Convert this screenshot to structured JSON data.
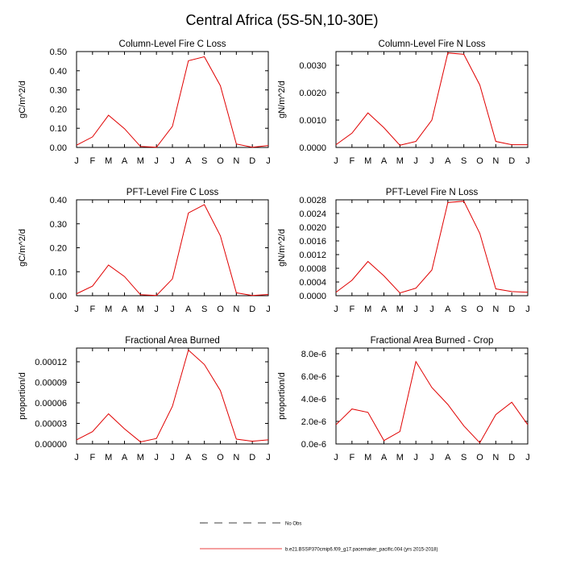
{
  "figure_title": "Central Africa (5S-5N,10-30E)",
  "legend": {
    "obs_label": "No Obs",
    "model_label": "b.e21.BSSP370cmip6.f09_g17.pacemaker_pacific.004 (yrs 2015-2018)",
    "model_color": "#e00000"
  },
  "chart_data": [
    {
      "type": "line",
      "title": "Column-Level Fire C Loss",
      "ylabel": "gC/m^2/d",
      "categories": [
        "J",
        "F",
        "M",
        "A",
        "M",
        "J",
        "J",
        "A",
        "S",
        "O",
        "N",
        "D",
        "J"
      ],
      "ylim": [
        0,
        0.5
      ],
      "yticks": [
        0,
        0.1,
        0.2,
        0.3,
        0.4,
        0.5
      ],
      "yticklabels": [
        "0.00",
        "0.10",
        "0.20",
        "0.30",
        "0.40",
        "0.50"
      ],
      "series": [
        {
          "name": "b.e21.BSSP370cmip6.f09_g17.pacemaker_pacific.004 (yrs 2015-2018)",
          "values": [
            0.012,
            0.055,
            0.168,
            0.098,
            0.005,
            0.001,
            0.11,
            0.452,
            0.473,
            0.322,
            0.018,
            0.001,
            0.01
          ]
        }
      ]
    },
    {
      "type": "line",
      "title": "Column-Level Fire N Loss",
      "ylabel": "gN/m^2/d",
      "categories": [
        "J",
        "F",
        "M",
        "A",
        "M",
        "J",
        "J",
        "A",
        "S",
        "O",
        "N",
        "D",
        "J"
      ],
      "ylim": [
        0,
        0.0035
      ],
      "yticks": [
        0,
        0.001,
        0.002,
        0.003
      ],
      "yticklabels": [
        "0.0000",
        "0.0010",
        "0.0020",
        "0.0030"
      ],
      "series": [
        {
          "name": "b.e21.BSSP370cmip6.f09_g17.pacemaker_pacific.004 (yrs 2015-2018)",
          "values": [
            0.0001,
            0.00052,
            0.00126,
            0.00072,
            8e-05,
            0.00022,
            0.001,
            0.00345,
            0.0034,
            0.00228,
            0.00022,
            0.0001,
            0.0001
          ]
        }
      ]
    },
    {
      "type": "line",
      "title": "PFT-Level Fire C Loss",
      "ylabel": "gC/m^2/d",
      "categories": [
        "J",
        "F",
        "M",
        "A",
        "M",
        "J",
        "J",
        "A",
        "S",
        "O",
        "N",
        "D",
        "J"
      ],
      "ylim": [
        0,
        0.4
      ],
      "yticks": [
        0,
        0.1,
        0.2,
        0.3,
        0.4
      ],
      "yticklabels": [
        "0.00",
        "0.10",
        "0.20",
        "0.30",
        "0.40"
      ],
      "series": [
        {
          "name": "b.e21.BSSP370cmip6.f09_g17.pacemaker_pacific.004 (yrs 2015-2018)",
          "values": [
            0.008,
            0.04,
            0.128,
            0.08,
            0.004,
            0.001,
            0.07,
            0.345,
            0.38,
            0.25,
            0.012,
            0.001,
            0.005
          ]
        }
      ]
    },
    {
      "type": "line",
      "title": "PFT-Level Fire N Loss",
      "ylabel": "gN/m^2/d",
      "categories": [
        "J",
        "F",
        "M",
        "A",
        "M",
        "J",
        "J",
        "A",
        "S",
        "O",
        "N",
        "D",
        "J"
      ],
      "ylim": [
        0,
        0.0028
      ],
      "yticks": [
        0,
        0.0004,
        0.0008,
        0.0012,
        0.0016,
        0.002,
        0.0024,
        0.0028
      ],
      "yticklabels": [
        "0.0000",
        "0.0004",
        "0.0008",
        "0.0012",
        "0.0016",
        "0.0020",
        "0.0024",
        "0.0028"
      ],
      "series": [
        {
          "name": "b.e21.BSSP370cmip6.f09_g17.pacemaker_pacific.004 (yrs 2015-2018)",
          "values": [
            0.0001,
            0.00045,
            0.001,
            0.00058,
            8e-05,
            0.00022,
            0.00075,
            0.00272,
            0.00276,
            0.00182,
            0.0002,
            0.00012,
            0.0001
          ]
        }
      ]
    },
    {
      "type": "line",
      "title": "Fractional Area Burned",
      "ylabel": "proportion/d",
      "categories": [
        "J",
        "F",
        "M",
        "A",
        "M",
        "J",
        "J",
        "A",
        "S",
        "O",
        "N",
        "D",
        "J"
      ],
      "ylim": [
        0,
        0.00014
      ],
      "yticks": [
        0,
        3e-05,
        6e-05,
        9e-05,
        0.00012
      ],
      "yticklabels": [
        "0.00000",
        "0.00003",
        "0.00006",
        "0.00009",
        "0.00012"
      ],
      "series": [
        {
          "name": "b.e21.BSSP370cmip6.f09_g17.pacemaker_pacific.004 (yrs 2015-2018)",
          "values": [
            6e-06,
            1.8e-05,
            4.4e-05,
            2.2e-05,
            3e-06,
            8e-06,
            5.5e-05,
            0.000137,
            0.000116,
            7.8e-05,
            7e-06,
            4e-06,
            6e-06
          ]
        }
      ]
    },
    {
      "type": "line",
      "title": "Fractional Area Burned - Crop",
      "ylabel": "proportion/d",
      "categories": [
        "J",
        "F",
        "M",
        "A",
        "M",
        "J",
        "J",
        "A",
        "S",
        "O",
        "N",
        "D",
        "J"
      ],
      "ylim": [
        0,
        8.5e-06
      ],
      "yticks": [
        0,
        2e-06,
        4e-06,
        6e-06,
        8e-06
      ],
      "yticklabels": [
        "0.0e-6",
        "2.0e-6",
        "4.0e-6",
        "6.0e-6",
        "8.0e-6"
      ],
      "series": [
        {
          "name": "b.e21.BSSP370cmip6.f09_g17.pacemaker_pacific.004 (yrs 2015-2018)",
          "values": [
            1.7e-06,
            3.1e-06,
            2.8e-06,
            3e-07,
            1.1e-06,
            7.3e-06,
            5e-06,
            3.5e-06,
            1.6e-06,
            1e-07,
            2.6e-06,
            3.7e-06,
            1.7e-06
          ]
        }
      ]
    }
  ]
}
